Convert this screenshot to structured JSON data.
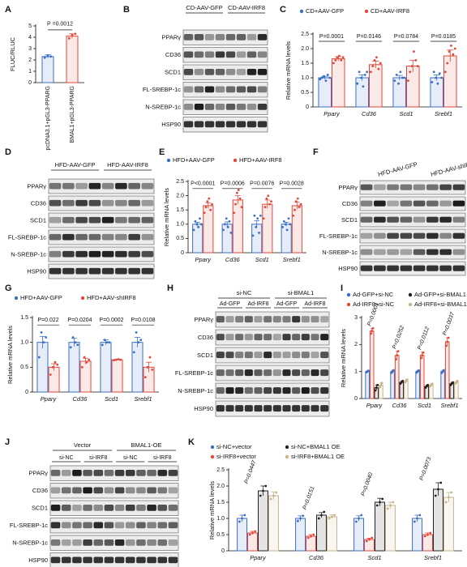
{
  "chart_data": [
    {
      "type": "bar",
      "panel": "A",
      "y_label": "FLUC/RLUC",
      "annotation": "P =0.0012",
      "categories": [
        "pcDNA3.1+pGL3-PPARG",
        "BMAL1+pGL3-PPARG"
      ],
      "values": [
        2.3,
        4.1
      ],
      "errors": [
        0.15,
        0.2
      ],
      "colors": [
        "#3a6fc4",
        "#e0483a"
      ],
      "points": [
        [
          2.2,
          2.4,
          2.3
        ],
        [
          3.9,
          4.2,
          4.3
        ]
      ],
      "ylim": [
        0,
        5
      ],
      "yticks": [
        0,
        1,
        2,
        3,
        4,
        5
      ]
    },
    {
      "type": "bar",
      "panel": "C",
      "y_label": "Relative mRNA levels",
      "categories": [
        "Ppary",
        "Cd36",
        "Scd1",
        "Srebf1"
      ],
      "annotations": [
        "P=0.0001",
        "P=0.0146",
        "P=0.0784",
        "P=0.0185"
      ],
      "series": [
        {
          "name": "CD+AAV-GFP",
          "color": "#3a6fc4",
          "values": [
            1,
            1,
            1,
            1
          ],
          "errors": [
            0.05,
            0.1,
            0.08,
            0.1
          ],
          "points": [
            [
              0.95,
              1.0,
              1.05,
              0.9,
              1.1,
              1.0
            ],
            [
              0.8,
              1.2,
              1.0,
              0.7,
              1.1,
              1.2
            ],
            [
              0.9,
              1.1,
              0.8,
              1.2,
              1.0,
              1.0
            ],
            [
              0.85,
              1.2,
              1.0,
              0.8,
              1.15,
              1.0
            ]
          ]
        },
        {
          "name": "CD+AAV-IRF8",
          "color": "#e0483a",
          "values": [
            1.65,
            1.45,
            1.4,
            1.75
          ],
          "errors": [
            0.07,
            0.12,
            0.2,
            0.2
          ],
          "points": [
            [
              1.5,
              1.6,
              1.7,
              1.75,
              1.6,
              1.7
            ],
            [
              1.2,
              1.4,
              1.6,
              1.7,
              1.3,
              1.5
            ],
            [
              0.9,
              1.2,
              1.4,
              1.9,
              1.6,
              1.4
            ],
            [
              1.2,
              1.5,
              1.9,
              2.1,
              1.8,
              2.0
            ]
          ]
        }
      ],
      "ylim": [
        0,
        2.5
      ],
      "yticks": [
        0,
        0.5,
        {
          "value": 1,
          "label": "1.0"
        },
        1.5,
        {
          "value": 2,
          "label": "2.0"
        },
        2.5
      ]
    },
    {
      "type": "bar",
      "panel": "E",
      "y_label": "Relative mRNA levels",
      "categories": [
        "Ppary",
        "Cd36",
        "Scd1",
        "Srebf1"
      ],
      "annotations": [
        "P<0.0001",
        "P=0.0006",
        "P=0.0076",
        "P=0.0028"
      ],
      "series": [
        {
          "name": "HFD+AAV-GFP",
          "color": "#3a6fc4",
          "values": [
            1,
            1,
            1,
            1
          ],
          "errors": [
            0.07,
            0.08,
            0.12,
            0.07
          ],
          "points": [
            [
              0.8,
              1.1,
              1.0,
              0.9,
              1.2,
              1.0
            ],
            [
              0.8,
              1.0,
              1.2,
              0.9,
              1.1,
              0.7
            ],
            [
              0.6,
              1.3,
              0.9,
              1.2,
              0.7,
              1.3
            ],
            [
              0.9,
              1.1,
              1.0,
              0.8,
              1.2,
              1.0
            ]
          ]
        },
        {
          "name": "HFD+AAV-IRF8",
          "color": "#e0483a",
          "values": [
            1.65,
            1.85,
            1.7,
            1.65
          ],
          "errors": [
            0.1,
            0.15,
            0.15,
            0.12
          ],
          "points": [
            [
              1.4,
              1.6,
              1.8,
              1.9,
              1.5,
              1.7
            ],
            [
              1.4,
              1.7,
              2.1,
              2.2,
              1.9,
              1.6
            ],
            [
              1.2,
              1.6,
              1.9,
              2.0,
              1.7,
              1.8
            ],
            [
              1.3,
              1.5,
              1.8,
              1.9,
              1.6,
              1.7
            ]
          ]
        }
      ],
      "ylim": [
        0,
        2.5
      ],
      "yticks": [
        0,
        0.5,
        {
          "value": 1,
          "label": "1.0"
        },
        1.5,
        {
          "value": 2,
          "label": "2.0"
        },
        2.5
      ]
    },
    {
      "type": "bar",
      "panel": "G",
      "y_label": "Relative mRNA levels",
      "categories": [
        "Ppary",
        "Cd36",
        "Scd1",
        "Srebf1"
      ],
      "annotations": [
        "P=0.022",
        "P=0.0204",
        "P=0.0002",
        "P=0.0108"
      ],
      "series": [
        {
          "name": "HFD+AAV-GFP",
          "color": "#3a6fc4",
          "values": [
            1,
            1,
            1,
            1
          ],
          "errors": [
            0.12,
            0.08,
            0.05,
            0.1
          ],
          "points": [
            [
              0.7,
              1.2,
              1.0,
              1.1
            ],
            [
              0.9,
              1.1,
              1.0,
              0.95
            ],
            [
              0.95,
              1.05,
              1.0,
              1.0
            ],
            [
              0.8,
              1.2,
              1.0,
              1.05
            ]
          ]
        },
        {
          "name": "HFD+AAV-shIRF8",
          "color": "#e0483a",
          "values": [
            0.5,
            0.62,
            0.65,
            0.5
          ],
          "errors": [
            0.07,
            0.06,
            0.01,
            0.1
          ],
          "points": [
            [
              0.35,
              0.5,
              0.6,
              0.55
            ],
            [
              0.5,
              0.7,
              0.6,
              0.65
            ],
            [
              0.64,
              0.65,
              0.66,
              0.65
            ],
            [
              0.3,
              0.5,
              0.7,
              0.45
            ]
          ]
        }
      ],
      "ylim": [
        0,
        1.5
      ],
      "yticks": [
        0,
        0.5,
        {
          "value": 1,
          "label": "1.0"
        },
        1.5
      ]
    },
    {
      "type": "bar",
      "panel": "I",
      "y_label": "Relative mRNA levels",
      "categories": [
        "Ppary",
        "Cd36",
        "Scd1",
        "Srebf1"
      ],
      "annotations": [
        "P=0.0001",
        "P=0.0252",
        "P=0.0112",
        "P=0.0037"
      ],
      "series": [
        {
          "name": "Ad-GFP+si-NC",
          "color": "#3a6fc4",
          "values": [
            1,
            1,
            1,
            1
          ],
          "errors": [
            0.03,
            0.05,
            0.04,
            0.05
          ],
          "points": [
            [
              0.97,
              1.0,
              1.03
            ],
            [
              0.95,
              1.0,
              1.05
            ],
            [
              0.96,
              1.0,
              1.04
            ],
            [
              0.95,
              1.0,
              1.05
            ]
          ]
        },
        {
          "name": "Ad-IRF8+si-NC",
          "color": "#e0483a",
          "values": [
            2.5,
            1.6,
            1.6,
            2.1
          ],
          "errors": [
            0.1,
            0.15,
            0.12,
            0.15
          ],
          "points": [
            [
              2.4,
              2.5,
              2.6
            ],
            [
              1.45,
              1.6,
              1.75
            ],
            [
              1.5,
              1.6,
              1.7
            ],
            [
              1.95,
              2.1,
              2.25
            ]
          ]
        },
        {
          "name": "Ad-GFP+si-BMAL1",
          "color": "#222222",
          "values": [
            0.4,
            0.6,
            0.45,
            0.55
          ],
          "errors": [
            0.1,
            0.05,
            0.05,
            0.05
          ],
          "points": [
            [
              0.3,
              0.4,
              0.5
            ],
            [
              0.55,
              0.6,
              0.65
            ],
            [
              0.4,
              0.45,
              0.5
            ],
            [
              0.5,
              0.55,
              0.6
            ]
          ]
        },
        {
          "name": "Ad-IRF8+si-BMAL1",
          "color": "#c8b48a",
          "values": [
            0.5,
            0.65,
            0.5,
            0.6
          ],
          "errors": [
            0.08,
            0.06,
            0.05,
            0.05
          ],
          "points": [
            [
              0.42,
              0.5,
              0.58
            ],
            [
              0.6,
              0.65,
              0.7
            ],
            [
              0.45,
              0.5,
              0.55
            ],
            [
              0.55,
              0.6,
              0.65
            ]
          ]
        }
      ],
      "ylim": [
        0,
        3
      ],
      "yticks": [
        0,
        1,
        2,
        3
      ]
    },
    {
      "type": "bar",
      "panel": "K",
      "y_label": "Relative mRNA levels",
      "categories": [
        "Ppary",
        "Cd36",
        "Scd1",
        "Srebf1"
      ],
      "annotations": [
        "P=0.0447",
        "P=0.0151",
        "P=0.0040",
        "P=0.0073"
      ],
      "series": [
        {
          "name": "si-NC+vector",
          "color": "#3a6fc4",
          "values": [
            1,
            1,
            1,
            1
          ],
          "errors": [
            0.1,
            0.08,
            0.08,
            0.1
          ],
          "points": [
            [
              0.9,
              1.0,
              1.1
            ],
            [
              0.92,
              1.0,
              1.08
            ],
            [
              0.9,
              1.0,
              1.1
            ],
            [
              0.9,
              1.0,
              1.1
            ]
          ]
        },
        {
          "name": "si-IRF8+vector",
          "color": "#e0483a",
          "values": [
            0.55,
            0.45,
            0.35,
            0.5
          ],
          "errors": [
            0.05,
            0.05,
            0.04,
            0.05
          ],
          "points": [
            [
              0.5,
              0.55,
              0.6
            ],
            [
              0.4,
              0.45,
              0.5
            ],
            [
              0.3,
              0.35,
              0.4
            ],
            [
              0.45,
              0.5,
              0.55
            ]
          ]
        },
        {
          "name": "si-NC+BMAL1 OE",
          "color": "#222222",
          "values": [
            1.85,
            1.1,
            1.5,
            1.9
          ],
          "errors": [
            0.15,
            0.08,
            0.12,
            0.2
          ],
          "points": [
            [
              1.7,
              1.85,
              2.0
            ],
            [
              1.0,
              1.1,
              1.2
            ],
            [
              1.4,
              1.5,
              1.6
            ],
            [
              1.7,
              1.9,
              2.1
            ]
          ]
        },
        {
          "name": "si-IRF8+BMAL1 OE",
          "color": "#c8b48a",
          "values": [
            1.7,
            1.05,
            1.4,
            1.65
          ],
          "errors": [
            0.12,
            0.06,
            0.1,
            0.15
          ],
          "points": [
            [
              1.6,
              1.7,
              1.8
            ],
            [
              1.0,
              1.05,
              1.1
            ],
            [
              1.3,
              1.4,
              1.5
            ],
            [
              1.5,
              1.65,
              1.8
            ]
          ]
        }
      ],
      "ylim": [
        0,
        2.5
      ],
      "yticks": [
        0,
        0.5,
        {
          "value": 1,
          "label": "1.0"
        },
        1.5,
        {
          "value": 2,
          "label": "2.0"
        },
        2.5
      ]
    }
  ],
  "blots": [
    {
      "panel": "B",
      "groups": [
        "CD-AAV-GFP",
        "CD-AAV-IRF8"
      ],
      "rows": [
        "PPARγ",
        "CD36",
        "SCD1",
        "FL-SREBP-1c",
        "N-SREBP-1c",
        "HSP90"
      ]
    },
    {
      "panel": "D",
      "groups": [
        "HFD-AAV-GFP",
        "HFD-AAV-IRF8"
      ],
      "rows": [
        "PPARγ",
        "CD36",
        "SCD1",
        "FL-SREBP-1c",
        "N-SREBP-1c",
        "HSP90"
      ]
    },
    {
      "panel": "F",
      "groups": [
        "HFD-AAV-GFP",
        "HFD-AAV-shIRF8"
      ],
      "rows": [
        "PPARγ",
        "CD36",
        "SCD1",
        "FL-SREBP-1c",
        "N-SREBP-1c",
        "HSP90"
      ]
    },
    {
      "panel": "H",
      "groups": [
        "si-NC",
        "si-BMAL1"
      ],
      "subgroups": [
        "Ad-GFP",
        "Ad-IRF8",
        "Ad-GFP",
        "Ad-IRF8"
      ],
      "rows": [
        "PPARγ",
        "CD36",
        "SCD1",
        "FL-SREBP-1c",
        "N-SREBP-1c",
        "HSP90"
      ]
    },
    {
      "panel": "J",
      "groups": [
        "Vector",
        "BMAL1-OE"
      ],
      "subgroups": [
        "si-NC",
        "si-IRF8",
        "si-NC",
        "si-IRF8"
      ],
      "rows": [
        "PPARγ",
        "CD36",
        "SCD1",
        "FL-SREBP-1c",
        "N-SREBP-1c",
        "HSP90"
      ]
    }
  ]
}
